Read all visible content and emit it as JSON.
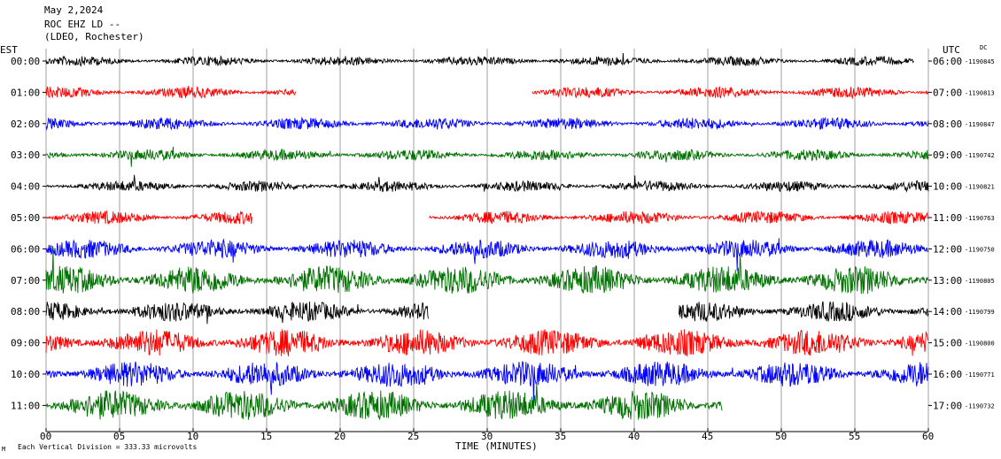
{
  "chart_data": {
    "type": "line",
    "title_lines": [
      "May 2,2024",
      "ROC EHZ LD --",
      "(LDEO, Rochester)"
    ],
    "left_axis_label": "EST",
    "right_axis_label": "UTC",
    "right_corner_tag": "DC",
    "xlabel": "TIME (MINUTES)",
    "xlim": [
      0,
      60
    ],
    "x_ticks": [
      "00",
      "05",
      "10",
      "15",
      "20",
      "25",
      "30",
      "35",
      "40",
      "45",
      "50",
      "55",
      "60"
    ],
    "footer_note": "Each Vertical Division = 333.33 microvolts",
    "footer_mark": "M",
    "trace_colors": [
      "#000000",
      "#ff0000",
      "#0000ff",
      "#007000"
    ],
    "rows": [
      {
        "est": "00:00",
        "utc": "06:00",
        "offset": "1190845",
        "level": 0.22
      },
      {
        "est": "01:00",
        "utc": "07:00",
        "offset": "1190813",
        "level": 0.28
      },
      {
        "est": "02:00",
        "utc": "08:00",
        "offset": "1190847",
        "level": 0.3
      },
      {
        "est": "03:00",
        "utc": "09:00",
        "offset": "1190742",
        "level": 0.28
      },
      {
        "est": "04:00",
        "utc": "10:00",
        "offset": "1190821",
        "level": 0.26
      },
      {
        "est": "05:00",
        "utc": "11:00",
        "offset": "1190763",
        "level": 0.34
      },
      {
        "est": "06:00",
        "utc": "12:00",
        "offset": "1190750",
        "level": 0.55
      },
      {
        "est": "07:00",
        "utc": "13:00",
        "offset": "1190805",
        "level": 0.9
      },
      {
        "est": "08:00",
        "utc": "14:00",
        "offset": "1190799",
        "level": 0.6
      },
      {
        "est": "09:00",
        "utc": "15:00",
        "offset": "1190800",
        "level": 0.85
      },
      {
        "est": "10:00",
        "utc": "16:00",
        "offset": "1190771",
        "level": 0.8
      },
      {
        "est": "11:00",
        "utc": "17:00",
        "offset": "1190732",
        "level": 0.95
      }
    ],
    "gaps_minutes": [
      [],
      [
        [
          17,
          26.5
        ],
        [
          26.5,
          33
        ]
      ],
      [],
      [],
      [],
      [
        [
          14,
          26
        ]
      ],
      [],
      [],
      [
        [
          26,
          43
        ]
      ],
      [],
      [],
      [
        [
          46,
          60
        ]
      ]
    ],
    "series_end_minutes": [
      59,
      60,
      60,
      60,
      60,
      60,
      60,
      60,
      60,
      60,
      60,
      60
    ]
  }
}
